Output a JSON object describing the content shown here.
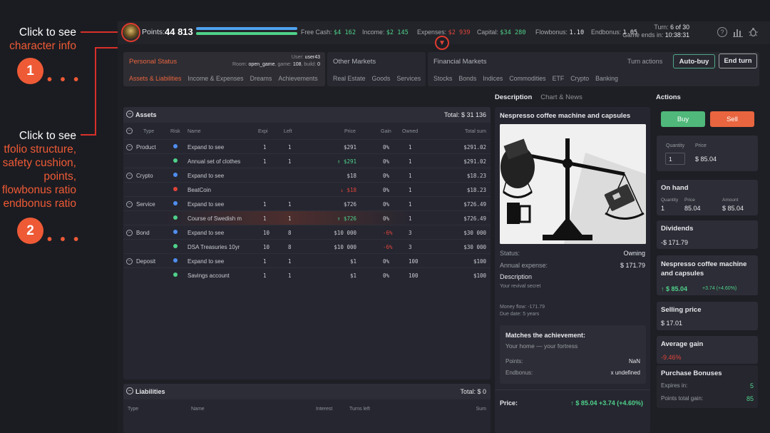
{
  "annotations": {
    "a1_white": "Click to see",
    "a1_orange": "character info",
    "a1_num": "1",
    "a2_white": "Click to see",
    "a2_lines": [
      "tfolio structure,",
      "safety cushion,",
      "points,",
      "flowbonus ratio",
      "endbonus ratio"
    ],
    "a2_num": "2",
    "dots": "• • •"
  },
  "topbar": {
    "points_label": "Points:",
    "points_value": "44 813",
    "free_cash_label": "Free Cash:",
    "free_cash": "$4 162",
    "income_label": "Income:",
    "income": "$2 145",
    "expenses_label": "Expenses:",
    "expenses": "$2 939",
    "capital_label": "Capital:",
    "capital": "$34 280",
    "flowbonus_label": "Flowbonus:",
    "flowbonus": "1.10",
    "endbonus_label": "Endbonus:",
    "endbonus": "1.05",
    "turn_label": "Turn:",
    "turn_value": "6 of 30",
    "ends_label": "Game ends in:",
    "ends_value": "10:38:31"
  },
  "nav": {
    "personal_status": "Personal Status",
    "user_label": "User:",
    "user": "user43",
    "room_label": "Room:",
    "room": "open_game",
    "game_label": "game:",
    "game": "108",
    "build_label": "build:",
    "build": "0",
    "personal_tabs": [
      "Assets & Liabilities",
      "Income & Expenses",
      "Dreams",
      "Achievements"
    ],
    "other_markets": "Other Markets",
    "other_tabs": [
      "Real Estate",
      "Goods",
      "Services"
    ],
    "financial_markets": "Financial Markets",
    "financial_tabs": [
      "Stocks",
      "Bonds",
      "Indices",
      "Commodities",
      "ETF",
      "Crypto",
      "Banking"
    ],
    "turn_actions": "Turn actions",
    "auto_buy": "Auto-buy",
    "end_turn": "End turn"
  },
  "assets": {
    "title": "Assets",
    "total": "Total: $ 31 136",
    "columns": [
      "Type",
      "Risk",
      "Name",
      "Expi",
      "Left",
      "Price",
      "Gain",
      "Owned",
      "Total sum"
    ],
    "rows": [
      {
        "type": "Product",
        "risk": "#4f8ef0",
        "name": "Expand to see",
        "expi": "1",
        "left": "1",
        "price": "$291",
        "gain": "0%",
        "owned": "1",
        "total": "$291.02",
        "group": true
      },
      {
        "type": "",
        "risk": "#4fd18a",
        "name": "Annual set of clothes",
        "expi": "1",
        "left": "1",
        "price": "↑ $291",
        "gain": "0%",
        "owned": "1",
        "total": "$291.02",
        "pc": "g"
      },
      {
        "type": "Crypto",
        "risk": "#4f8ef0",
        "name": "Expand to see",
        "expi": "",
        "left": "",
        "price": "$18",
        "gain": "0%",
        "owned": "1",
        "total": "$18.23",
        "group": true
      },
      {
        "type": "",
        "risk": "#e0443a",
        "name": "BeatCoin",
        "expi": "",
        "left": "",
        "price": "↓ $18",
        "gain": "0%",
        "owned": "1",
        "total": "$18.23",
        "pc": "r"
      },
      {
        "type": "Service",
        "risk": "#4f8ef0",
        "name": "Expand to see",
        "expi": "1",
        "left": "1",
        "price": "$726",
        "gain": "0%",
        "owned": "1",
        "total": "$726.49",
        "group": true
      },
      {
        "type": "",
        "risk": "#4fd18a",
        "name": "Course of Swedish m",
        "expi": "1",
        "left": "1",
        "price": "↑ $726",
        "gain": "0%",
        "owned": "1",
        "total": "$726.49",
        "pc": "g",
        "hl": true
      },
      {
        "type": "Bond",
        "risk": "#4f8ef0",
        "name": "Expand to see",
        "expi": "10",
        "left": "8",
        "price": "$10 000",
        "gain": "-6%",
        "owned": "3",
        "total": "$30 000",
        "group": true,
        "gc": "r"
      },
      {
        "type": "",
        "risk": "#4fd18a",
        "name": "DSA Treasuries 10yr",
        "expi": "10",
        "left": "8",
        "price": "$10 000",
        "gain": "-6%",
        "owned": "3",
        "total": "$30 000",
        "gc": "r"
      },
      {
        "type": "Deposit",
        "risk": "#4f8ef0",
        "name": "Expand to see",
        "expi": "1",
        "left": "1",
        "price": "$1",
        "gain": "0%",
        "owned": "100",
        "total": "$100",
        "group": true
      },
      {
        "type": "",
        "risk": "#4fd18a",
        "name": "Savings account",
        "expi": "1",
        "left": "1",
        "price": "$1",
        "gain": "0%",
        "owned": "100",
        "total": "$100"
      }
    ]
  },
  "liabilities": {
    "title": "Liabilities",
    "total": "Total: $ 0",
    "columns": [
      "Type",
      "Name",
      "Interest",
      "Turns left",
      "Sum"
    ]
  },
  "description": {
    "tab_active": "Description",
    "tab_inactive": "Chart & News",
    "item_title": "Nespresso coffee machine and capsules",
    "status_label": "Status:",
    "status": "Owning",
    "annual_label": "Annual expense:",
    "annual": "$ 171.79",
    "desc_label": "Description",
    "desc_text": "Your revival secret",
    "money_flow": "Money flow: -171.79",
    "due_date": "Due date: 5 years",
    "ach_title": "Matches the achievement:",
    "ach_name": "Your home — your fortress",
    "points_label": "Points:",
    "points": "NaN",
    "endbonus_label": "Endbonus:",
    "endbonus": "x undefined",
    "price_label": "Price:",
    "price": "↑ $ 85.04 +3.74 (+4.60%)"
  },
  "actions": {
    "title": "Actions",
    "buy": "Buy",
    "sell": "Sell",
    "quantity_label": "Quantity",
    "price_label": "Price",
    "quantity": "1",
    "price": "$ 85.04",
    "on_hand": "On hand",
    "oh_q_label": "Quantity",
    "oh_p_label": "Price",
    "oh_a_label": "Amount",
    "oh_q": "1",
    "oh_p": "85.04",
    "oh_a": "$ 85.04",
    "dividends": "Dividends",
    "dividends_val": "-$ 171.79",
    "item_name": "Nespresso coffee machine and capsules",
    "item_price": "↑ $ 85.04",
    "item_change": "+3.74 (+4.60%)",
    "selling_label": "Selling price",
    "selling_val": "$ 17.01",
    "avg_label": "Average gain",
    "avg_val": "-9.46%",
    "pb_label": "Purchase Bonuses",
    "expires_label": "Expires in:",
    "expires": "5",
    "ptg_label": "Points total gain:",
    "ptg": "85"
  },
  "colors": {
    "accent": "#ee5a36",
    "green": "#4fd18a",
    "red": "#e0443a",
    "blue": "#4fa3f0"
  }
}
